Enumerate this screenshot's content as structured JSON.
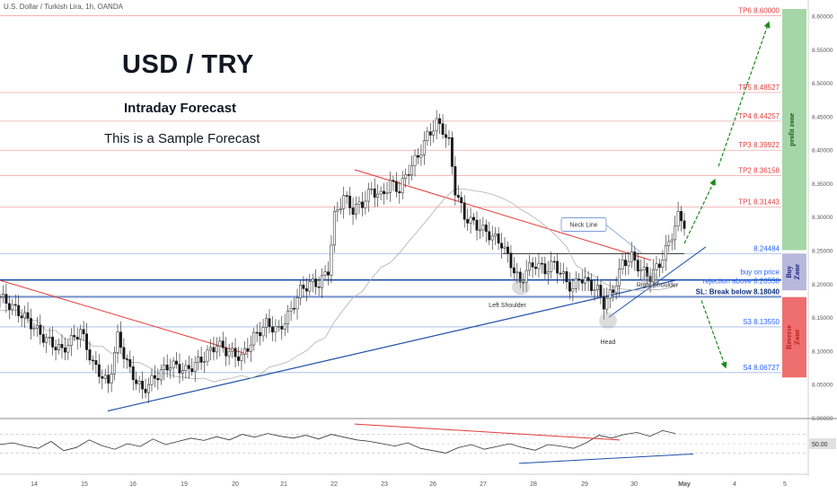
{
  "header": {
    "symbol": "U.S. Dollar / Turkish Lira, 1h, OANDA",
    "title": "USD / TRY",
    "subtitle": "Intraday Forecast",
    "note": "This is a Sample Forecast"
  },
  "colors": {
    "up": "#1a1a1a",
    "red_line": "#e53935",
    "blue_line": "#1e4fa8",
    "target_text": "#e04040",
    "level_text": "#2962ff",
    "profit_zone": "#a5d6a7",
    "buy_zone": "#b8b8dc",
    "reverse_zone": "#ef6f6f",
    "arrow": "#1b8a1b"
  },
  "chart_data": [
    {
      "type": "line",
      "title": "U.S. Dollar / Turkish Lira, 1h, OANDA",
      "x_ticks": [
        "14",
        "15",
        "16",
        "19",
        "20",
        "21",
        "22",
        "23",
        "26",
        "27",
        "28",
        "29",
        "30",
        "May",
        "4",
        "5"
      ],
      "y_ticks": [
        8.0,
        8.05,
        8.1,
        8.15,
        8.2,
        8.25,
        8.3,
        8.35,
        8.4,
        8.45,
        8.5,
        8.55,
        8.6
      ],
      "ylim": [
        8.0,
        8.61
      ],
      "price_path": [
        [
          0,
          8.18
        ],
        [
          8,
          8.15
        ],
        [
          14,
          8.12
        ],
        [
          20,
          8.1
        ],
        [
          26,
          8.13
        ],
        [
          30,
          8.08
        ],
        [
          35,
          8.05
        ],
        [
          38,
          8.12
        ],
        [
          42,
          8.07
        ],
        [
          46,
          8.04
        ],
        [
          50,
          8.06
        ],
        [
          55,
          8.08
        ],
        [
          60,
          8.07
        ],
        [
          66,
          8.09
        ],
        [
          70,
          8.11
        ],
        [
          73,
          8.1
        ],
        [
          78,
          8.09
        ],
        [
          82,
          8.12
        ],
        [
          86,
          8.14
        ],
        [
          90,
          8.13
        ],
        [
          94,
          8.16
        ],
        [
          97,
          8.19
        ],
        [
          100,
          8.2
        ],
        [
          103,
          8.2
        ],
        [
          106,
          8.22
        ],
        [
          108,
          8.3
        ],
        [
          111,
          8.33
        ],
        [
          114,
          8.31
        ],
        [
          117,
          8.32
        ],
        [
          120,
          8.34
        ],
        [
          123,
          8.33
        ],
        [
          126,
          8.35
        ],
        [
          129,
          8.34
        ],
        [
          132,
          8.37
        ],
        [
          135,
          8.39
        ],
        [
          138,
          8.42
        ],
        [
          141,
          8.44
        ],
        [
          143,
          8.43
        ],
        [
          145,
          8.41
        ],
        [
          147,
          8.34
        ],
        [
          150,
          8.3
        ],
        [
          153,
          8.29
        ],
        [
          156,
          8.28
        ],
        [
          159,
          8.27
        ],
        [
          162,
          8.26
        ],
        [
          165,
          8.23
        ],
        [
          168,
          8.2
        ],
        [
          170,
          8.22
        ],
        [
          173,
          8.23
        ],
        [
          176,
          8.22
        ],
        [
          179,
          8.23
        ],
        [
          182,
          8.21
        ],
        [
          185,
          8.19
        ],
        [
          187,
          8.21
        ],
        [
          190,
          8.2
        ],
        [
          193,
          8.19
        ],
        [
          195,
          8.17
        ],
        [
          198,
          8.19
        ],
        [
          201,
          8.23
        ],
        [
          204,
          8.24
        ],
        [
          207,
          8.22
        ],
        [
          210,
          8.21
        ],
        [
          213,
          8.23
        ],
        [
          216,
          8.26
        ],
        [
          219,
          8.3
        ],
        [
          221,
          8.29
        ]
      ],
      "price_levels": [
        {
          "label": "TP6 8.60000",
          "value": 8.6
        },
        {
          "label": "TP5 8.48527",
          "value": 8.48527
        },
        {
          "label": "TP4 8.44257",
          "value": 8.44257
        },
        {
          "label": "TP3 8.39922",
          "value": 8.39922
        },
        {
          "label": "TP2 8.36158",
          "value": 8.36158
        },
        {
          "label": "TP1 8.31443",
          "value": 8.31443
        },
        {
          "label": "8.24484",
          "value": 8.24484
        },
        {
          "label": "buy on price",
          "value": 8.21
        },
        {
          "label": "rejection above 8.20558",
          "value": 8.20558
        },
        {
          "label": "SL: Break below 8.18040",
          "value": 8.1804
        },
        {
          "label": "S3 8.13550",
          "value": 8.1355
        },
        {
          "label": "S4 8.06727",
          "value": 8.06727
        }
      ],
      "zones": [
        {
          "label": "profit zone",
          "from": 8.25,
          "to": 8.61
        },
        {
          "label": "Buy Zone",
          "from": 8.19,
          "to": 8.245
        },
        {
          "label": "Reverse Zone",
          "from": 8.06,
          "to": 8.18
        }
      ],
      "annotations": [
        "Neck Line",
        "Left Shoulder",
        "Head",
        "Right Shoulder"
      ]
    },
    {
      "type": "line",
      "y_ticks": [
        "50.00"
      ],
      "ylim": [
        0,
        100
      ],
      "values": [
        48,
        52,
        45,
        40,
        55,
        35,
        42,
        58,
        46,
        38,
        50,
        44,
        60,
        48,
        55,
        62,
        57,
        65,
        58,
        70,
        64,
        72,
        66,
        62,
        68,
        60,
        70,
        64,
        58,
        55,
        50,
        45,
        52,
        40,
        35,
        30,
        42,
        48,
        38,
        44,
        50,
        42,
        36,
        48,
        45,
        40,
        52,
        68,
        62,
        70,
        74,
        66,
        78,
        72
      ]
    }
  ]
}
